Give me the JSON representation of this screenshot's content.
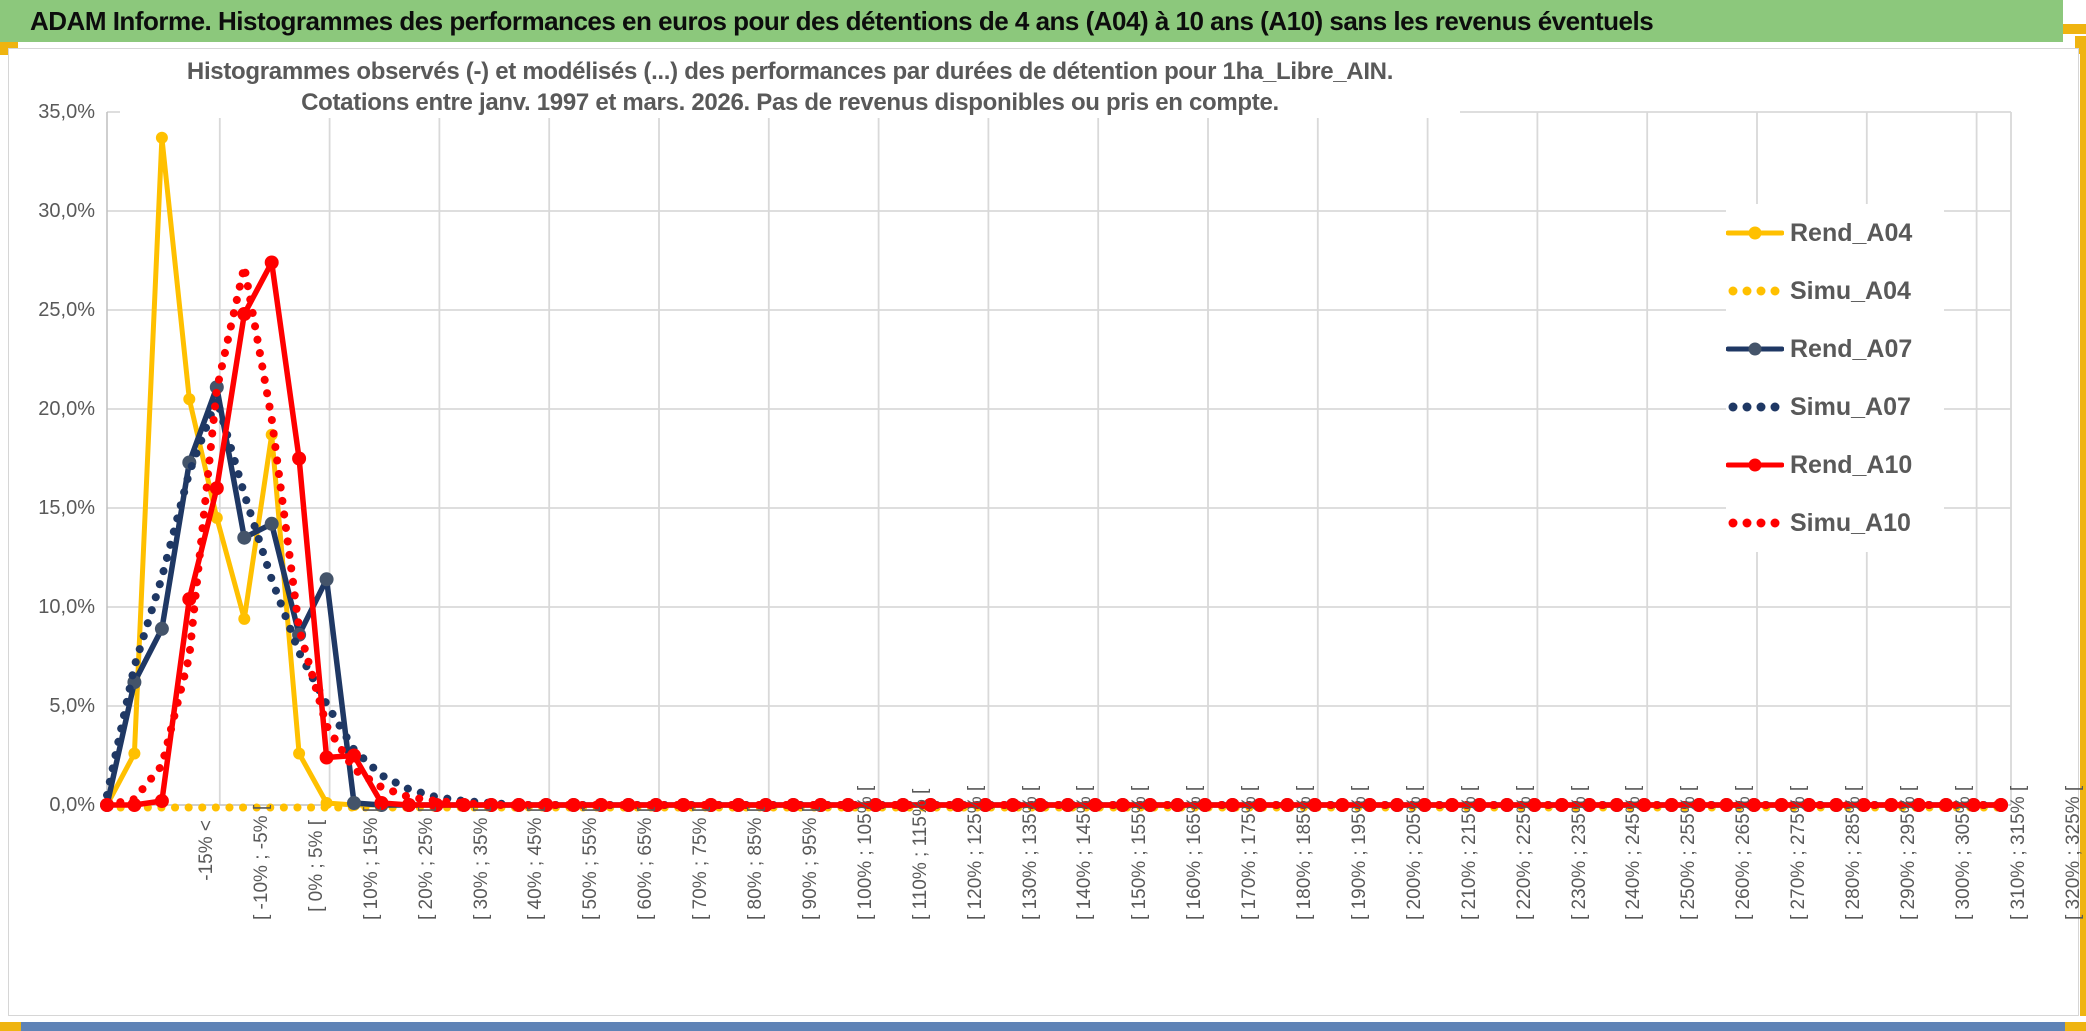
{
  "banner": {
    "title": "ADAM Informe. Histogrammes des performances en euros pour des détentions de 4 ans (A04) à 10 ans (A10) sans les revenus éventuels",
    "bg_color": "#8CC87C"
  },
  "frame": {
    "accent_color": "#EFB410",
    "bottom_bar_color": "#5F83B6",
    "border_color": "#D6D6D6"
  },
  "chart": {
    "title_line1": "Histogrammes observés (-) et modélisés (...) des performances par durées de détention pour 1ha_Libre_AIN.",
    "title_line2": "Cotations entre janv. 1997 et mars. 2026. Pas de revenus disponibles ou pris en compte.",
    "text_color": "#595959",
    "gridline_color": "#D9D9D9",
    "axis_color": "#BFBFBF",
    "legend": [
      {
        "label": "Rend_A04",
        "color": "#FFC000",
        "style": "solid",
        "marker_color": "#FFC000"
      },
      {
        "label": "Simu_A04",
        "color": "#FFC000",
        "style": "dotted"
      },
      {
        "label": "Rend_A07",
        "color": "#1F3864",
        "style": "solid",
        "marker_color": "#44546A"
      },
      {
        "label": "Simu_A07",
        "color": "#1F3864",
        "style": "dotted"
      },
      {
        "label": "Rend_A10",
        "color": "#FF0000",
        "style": "solid",
        "marker_color": "#FF0000"
      },
      {
        "label": "Simu_A10",
        "color": "#FF0000",
        "style": "dotted"
      }
    ]
  },
  "chart_data": {
    "type": "line",
    "title": "Histogrammes observés (-) et modélisés (...) des performances par durées de détention pour 1ha_Libre_AIN. Cotations entre janv. 1997 et mars. 2026. Pas de revenus disponibles ou pris en compte.",
    "xlabel": "",
    "ylabel": "",
    "ylim": [
      0,
      35
    ],
    "y_tick_step": 5,
    "y_tick_labels": [
      "0,0%",
      "5,0%",
      "10,0%",
      "15,0%",
      "20,0%",
      "25,0%",
      "30,0%",
      "35,0%"
    ],
    "n_categories": 70,
    "bin_width_pct": 5,
    "x_label_every_n_bins": 2,
    "legend_position": "right",
    "grid": true,
    "x_tick_labels": [
      "-15% <",
      "[ -10% ; -5% [",
      "[ 0% ; 5% [",
      "[ 10% ; 15% [",
      "[ 20% ; 25% [",
      "[ 30% ; 35% [",
      "[ 40% ; 45% [",
      "[ 50% ; 55% [",
      "[ 60% ; 65% [",
      "[ 70% ; 75% [",
      "[ 80% ; 85% [",
      "[ 90% ; 95% [",
      "[ 100% ; 105% [",
      "[ 110% ; 115% [",
      "[ 120% ; 125% [",
      "[ 130% ; 135% [",
      "[ 140% ; 145% [",
      "[ 150% ; 155% [",
      "[ 160% ; 165% [",
      "[ 170% ; 175% [",
      "[ 180% ; 185% [",
      "[ 190% ; 195% [",
      "[ 200% ; 205% [",
      "[ 210% ; 215% [",
      "[ 220% ; 225% [",
      "[ 230% ; 235% [",
      "[ 240% ; 245% [",
      "[ 250% ; 255% [",
      "[ 260% ; 265% [",
      "[ 270% ; 275% [",
      "[ 280% ; 285% [",
      "[ 290% ; 295% [",
      "[ 300% ; 305% [",
      "[ 310% ; 315% [",
      "[ 320% ; 325% ["
    ],
    "values_unit": "percent_of_observations",
    "values_note": "values listed for the first 16 bins; all remaining bins up to n_categories are 0",
    "series": [
      {
        "name": "Rend_A04",
        "color": "#FFC000",
        "style": "solid",
        "marker": "circle",
        "marker_color": "#FFC000",
        "values": [
          0,
          2.6,
          33.7,
          20.5,
          14.5,
          9.4,
          18.7,
          2.6,
          0.1,
          0,
          0,
          0,
          0,
          0,
          0,
          0
        ]
      },
      {
        "name": "Simu_A04",
        "color": "#FFC000",
        "style": "dotted",
        "values": [
          0,
          0,
          0,
          0,
          0,
          0,
          0,
          0,
          0,
          0,
          0,
          0,
          0,
          0,
          0,
          0
        ]
      },
      {
        "name": "Rend_A07",
        "color": "#1F3864",
        "style": "solid",
        "marker": "circle",
        "marker_color": "#44546A",
        "values": [
          0,
          6.2,
          8.9,
          17.3,
          21.1,
          13.5,
          14.2,
          8.6,
          11.4,
          0.1,
          0,
          0,
          0,
          0,
          0,
          0
        ]
      },
      {
        "name": "Simu_A07",
        "color": "#1F3864",
        "style": "dotted",
        "values": [
          0.5,
          7.0,
          11.5,
          16.8,
          20.5,
          15.7,
          11.4,
          7.7,
          5.1,
          2.8,
          1.5,
          0.8,
          0.4,
          0.2,
          0.1,
          0
        ]
      },
      {
        "name": "Rend_A10",
        "color": "#FF0000",
        "style": "solid",
        "marker": "circle",
        "marker_color": "#FF0000",
        "values": [
          0,
          0,
          0.2,
          10.4,
          16.0,
          24.8,
          27.4,
          17.5,
          2.4,
          2.5,
          0.1,
          0,
          0,
          0,
          0,
          0
        ]
      },
      {
        "name": "Simu_A10",
        "color": "#FF0000",
        "style": "dotted",
        "values": [
          0,
          0.3,
          2.0,
          7.5,
          21.0,
          27.2,
          19.5,
          8.9,
          4.0,
          1.8,
          0.9,
          0.4,
          0.2,
          0.1,
          0,
          0
        ]
      }
    ]
  }
}
